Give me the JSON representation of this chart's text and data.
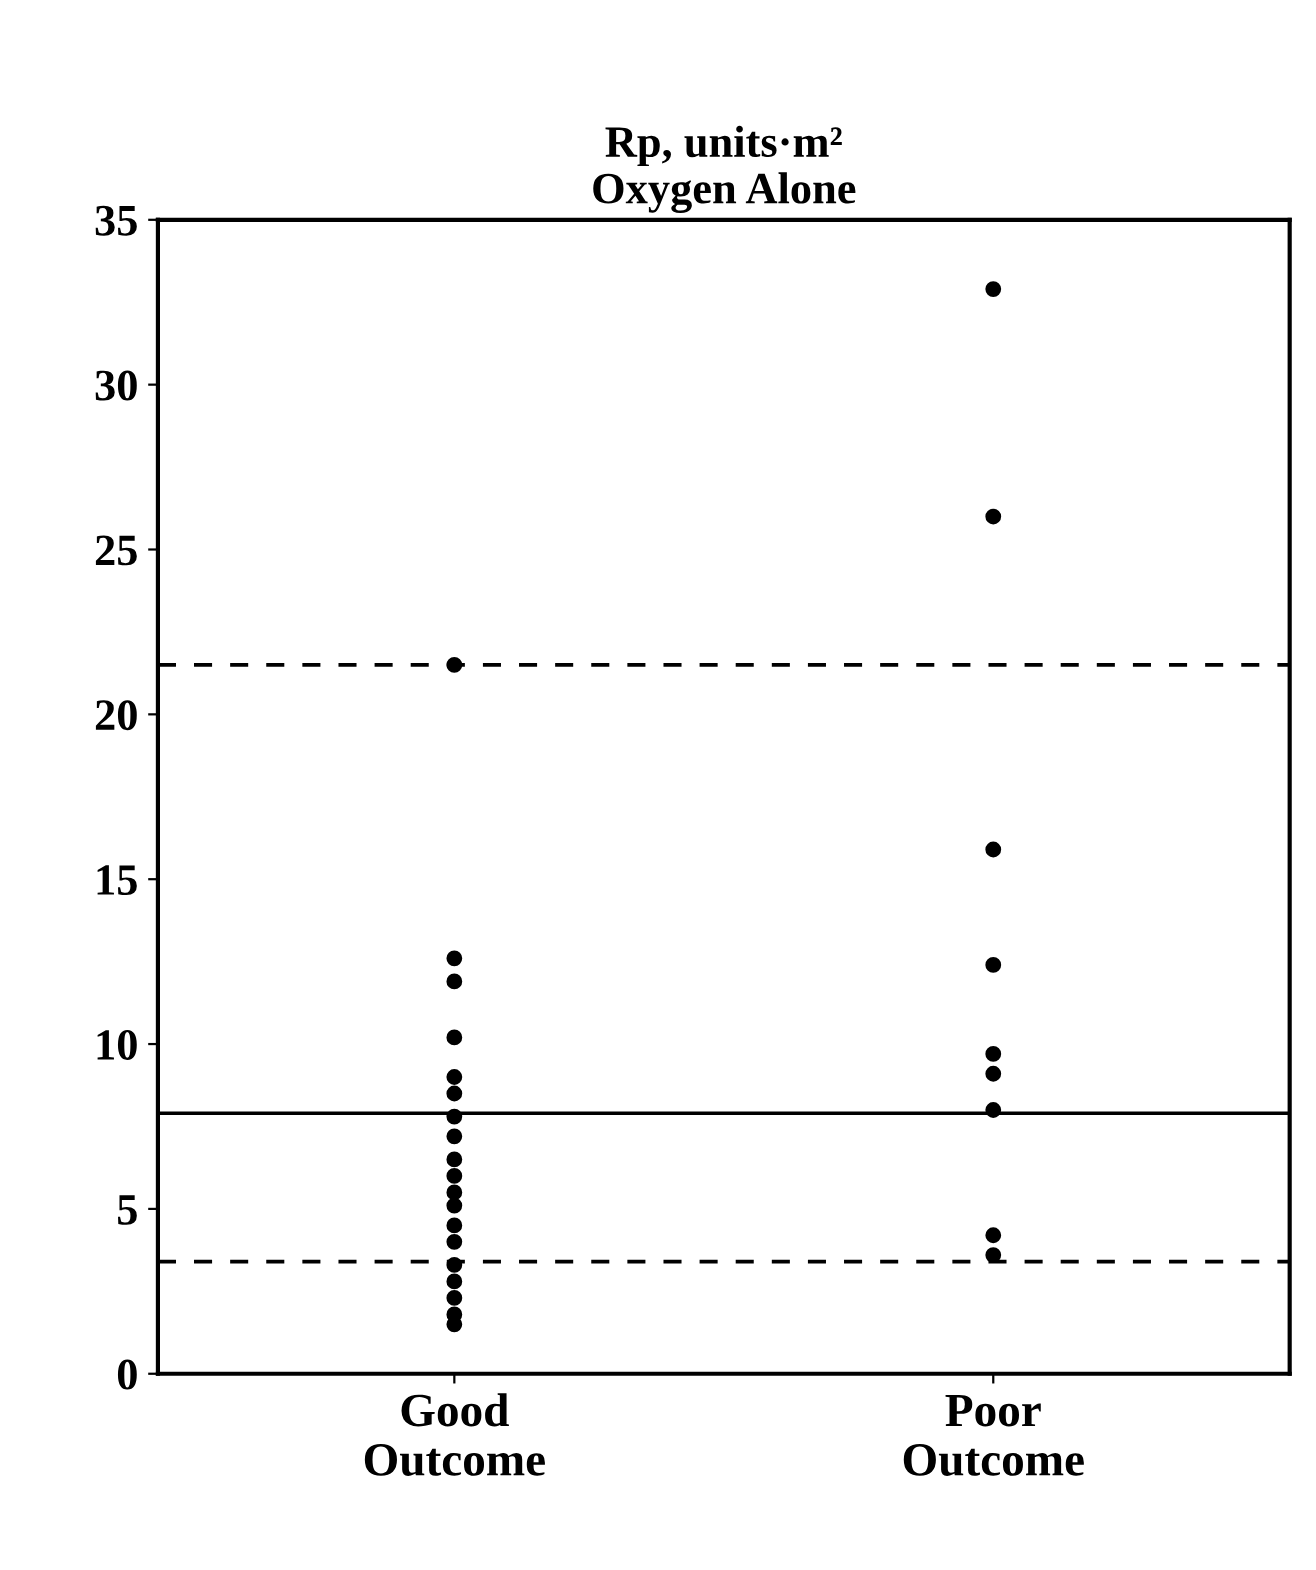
{
  "chart_data": {
    "type": "scatter",
    "title": "Rp, units·m²\nOxygen Alone",
    "categories": [
      "Good\nOutcome",
      "Poor\nOutcome"
    ],
    "series": [
      {
        "color": "#000000",
        "x": [
          "Good\nOutcome",
          "Good\nOutcome",
          "Good\nOutcome",
          "Good\nOutcome",
          "Good\nOutcome",
          "Good\nOutcome",
          "Good\nOutcome",
          "Good\nOutcome",
          "Good\nOutcome",
          "Good\nOutcome",
          "Good\nOutcome",
          "Good\nOutcome",
          "Good\nOutcome",
          "Good\nOutcome",
          "Good\nOutcome",
          "Good\nOutcome",
          "Good\nOutcome",
          "Good\nOutcome",
          "Good\nOutcome"
        ],
        "values": [
          21.5,
          12.6,
          11.9,
          10.2,
          9.0,
          8.5,
          7.8,
          7.2,
          6.5,
          6.0,
          5.5,
          5.1,
          4.5,
          4.0,
          3.3,
          2.8,
          2.3,
          1.8,
          1.5
        ]
      },
      {
        "color": "#000000",
        "x": [
          "Poor\nOutcome",
          "Poor\nOutcome",
          "Poor\nOutcome",
          "Poor\nOutcome",
          "Poor\nOutcome",
          "Poor\nOutcome",
          "Poor\nOutcome",
          "Poor\nOutcome",
          "Poor\nOutcome"
        ],
        "values": [
          32.9,
          26.0,
          15.9,
          12.4,
          9.7,
          9.1,
          8.0,
          4.2,
          3.6
        ]
      }
    ],
    "ylim": [
      0,
      35
    ],
    "yticks": [
      0,
      5,
      10,
      15,
      20,
      25,
      30,
      35
    ],
    "ref_lines": [
      {
        "axis": "y",
        "value": 21.5,
        "line_style": "dashed",
        "color": "#000000"
      },
      {
        "axis": "y",
        "value": 7.9,
        "line_style": "solid",
        "color": "#000000"
      },
      {
        "axis": "y",
        "value": 3.4,
        "line_style": "dashed",
        "color": "#000000"
      }
    ],
    "grid": false,
    "legend": false,
    "marker": "circle"
  }
}
